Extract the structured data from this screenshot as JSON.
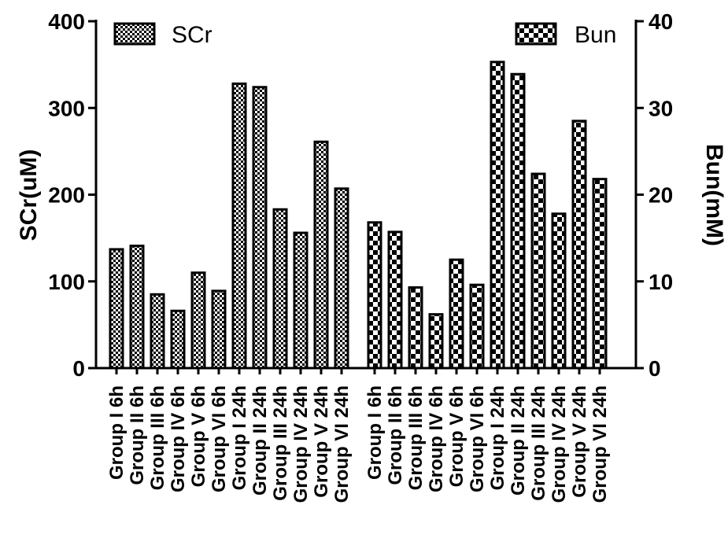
{
  "chart_data": {
    "type": "bar",
    "left_axis": {
      "label": "SCr(uM)",
      "ylim": [
        0,
        400
      ],
      "ticks": [
        "0",
        "100",
        "200",
        "300",
        "400"
      ]
    },
    "right_axis": {
      "label": "Bun(mM)",
      "ylim": [
        0,
        40
      ],
      "ticks": [
        "0",
        "10",
        "20",
        "30",
        "40"
      ]
    },
    "legend": {
      "placement": "top",
      "entries": [
        "SCr",
        "Bun"
      ]
    },
    "grid": false,
    "series": [
      {
        "name": "SCr",
        "axis": "left",
        "pattern": "fine-checker",
        "categories": [
          "Group I 6h",
          "Group II 6h",
          "Group III 6h",
          "Group IV 6h",
          "Group V 6h",
          "Group VI 6h",
          "Group I 24h",
          "Group II 24h",
          "Group III 24h",
          "Group IV 24h",
          "Group V 24h",
          "Group VI 24h"
        ],
        "values": [
          137,
          141,
          85,
          66,
          110,
          89,
          328,
          324,
          183,
          156,
          261,
          207
        ]
      },
      {
        "name": "Bun",
        "axis": "right",
        "pattern": "coarse-checker",
        "categories": [
          "Group I 6h",
          "Group II 6h",
          "Group III 6h",
          "Group IV 6h",
          "Group V 6h",
          "Group VI 6h",
          "Group I 24h",
          "Group II 24h",
          "Group III 24h",
          "Group IV 24h",
          "Group V 24h",
          "Group VI 24h"
        ],
        "values": [
          16.8,
          15.7,
          9.3,
          6.2,
          12.5,
          9.6,
          35.3,
          33.9,
          22.4,
          17.8,
          28.5,
          21.8
        ]
      }
    ]
  },
  "colors": {
    "ink": "#000000",
    "fill": "#ffffff",
    "background": "#ffffff"
  }
}
